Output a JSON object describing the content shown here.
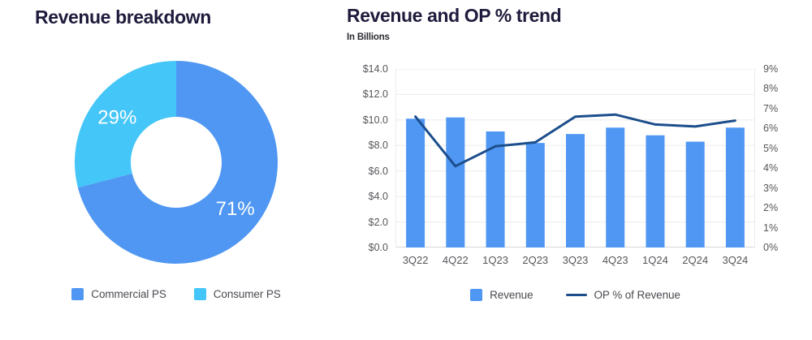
{
  "left_panel": {
    "title": "Revenue breakdown"
  },
  "right_panel": {
    "title": "Revenue and OP % trend",
    "subtitle": "In Billions"
  },
  "colors": {
    "bar_blue": "#4F97F2",
    "light_blue": "#45C6F8",
    "line_navy": "#1C4E8C",
    "title_text": "#1E1B3C",
    "axis_text": "#55565A",
    "grid": "#EBEBEB",
    "baseline": "#D8D8D8",
    "donut_label": "#FFFFFF"
  },
  "chart_data": [
    {
      "id": "revenue-breakdown",
      "type": "pie",
      "donut": true,
      "title": "Revenue breakdown",
      "labels": [
        "Commercial PS",
        "Consumer PS"
      ],
      "values": [
        71,
        29
      ],
      "value_labels": [
        "71%",
        "29%"
      ],
      "colors": [
        "#4F97F2",
        "#45C6F8"
      ],
      "label_color": "#FFFFFF",
      "start_angle_deg": 0,
      "direction": "clockwise",
      "legend_position": "bottom"
    },
    {
      "id": "revenue-op-trend",
      "type": "bar+line",
      "title": "Revenue and OP % trend",
      "subtitle": "In Billions",
      "categories": [
        "3Q22",
        "4Q22",
        "1Q23",
        "2Q23",
        "3Q23",
        "4Q23",
        "1Q24",
        "2Q24",
        "3Q24"
      ],
      "series": [
        {
          "name": "Revenue",
          "type": "bar",
          "axis": "left",
          "color": "#4F97F2",
          "values": [
            10.1,
            10.2,
            9.1,
            8.2,
            8.9,
            9.4,
            8.8,
            8.3,
            9.4
          ]
        },
        {
          "name": "OP % of Revenue",
          "type": "line",
          "axis": "right",
          "color": "#1C4E8C",
          "values": [
            6.6,
            4.1,
            5.1,
            5.3,
            6.6,
            6.7,
            6.2,
            6.1,
            6.4
          ]
        }
      ],
      "left_axis": {
        "min": 0,
        "max": 14,
        "tick_labels": [
          "$14.0",
          "$12.0",
          "$10.0",
          "$8.0",
          "$6.0",
          "$4.0",
          "$2.0",
          "$0.0"
        ]
      },
      "right_axis": {
        "min": 0,
        "max": 9,
        "tick_labels": [
          "9%",
          "8%",
          "7%",
          "6%",
          "5%",
          "4%",
          "3%",
          "2%",
          "1%",
          "0%"
        ]
      },
      "grid": true,
      "legend_position": "bottom"
    }
  ]
}
